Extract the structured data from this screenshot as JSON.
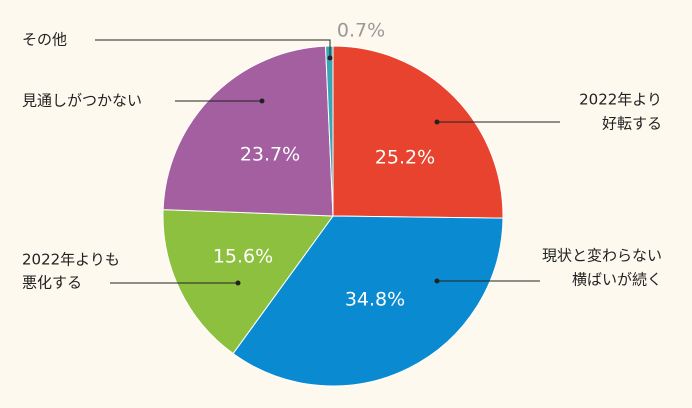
{
  "chart_data": {
    "type": "pie",
    "categories": [
      [
        "2022年より",
        "好転する"
      ],
      [
        "現状と変わらない",
        "横ばいが続く"
      ],
      [
        "2022年よりも",
        "悪化する"
      ],
      [
        "見通しがつかない"
      ],
      [
        "その他"
      ]
    ],
    "values": [
      25.2,
      34.8,
      15.6,
      23.7,
      0.7
    ],
    "value_labels": [
      "25.2%",
      "34.8%",
      "15.6%",
      "23.7%",
      "0.7%"
    ],
    "colors": [
      "#e8432e",
      "#0a8ad0",
      "#8dc03f",
      "#a45fa0",
      "#3aa6b5"
    ]
  }
}
